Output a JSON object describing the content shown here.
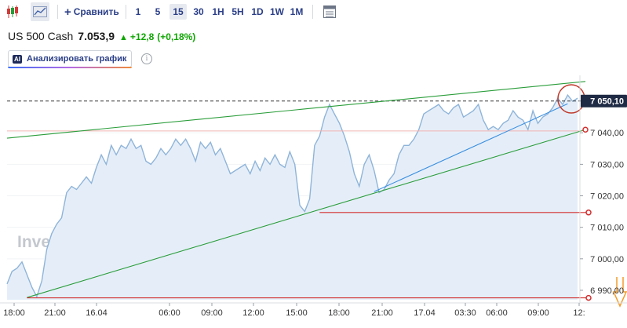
{
  "toolbar": {
    "compare_label": "Сравнить",
    "timeframes": [
      "1",
      "5",
      "15",
      "30",
      "1H",
      "5H",
      "1D",
      "1W",
      "1M"
    ],
    "selected_timeframe": "15"
  },
  "instrument": {
    "name": "US 500 Cash",
    "price": "7.053,9",
    "change": "+12,8",
    "change_pct": "(+0,18%)"
  },
  "analyze_button": {
    "badge": "AI",
    "label": "Анализировать график"
  },
  "chart_data": {
    "type": "area",
    "watermark": "Investing.com",
    "ylim": [
      6987,
      7057
    ],
    "y_ticks": [
      7040,
      7030,
      7020,
      7010,
      7000,
      6990
    ],
    "y_tick_labels": [
      "7 040,00",
      "7 030,00",
      "7 020,00",
      "7 010,00",
      "7 000,00",
      "6 990,00"
    ],
    "x_tick_labels": [
      "18:00",
      "21:00",
      "16.04",
      "06:00",
      "09:00",
      "12:00",
      "15:00",
      "18:00",
      "21:00",
      "17.04",
      "03:30",
      "06:00",
      "09:00",
      "12:"
    ],
    "last_price_label": "7 050,10",
    "last_price": 7050.1,
    "series": [
      {
        "values": [
          6992,
          6996,
          6997,
          6999,
          6995,
          6991,
          6988,
          6993,
          7003,
          7008,
          7011,
          7013,
          7021,
          7023,
          7022,
          7024,
          7026,
          7024,
          7029,
          7033,
          7030,
          7036,
          7033,
          7036,
          7035,
          7038,
          7035,
          7036,
          7031,
          7030,
          7032,
          7035,
          7033,
          7035,
          7038,
          7036,
          7038,
          7035,
          7031,
          7037,
          7035,
          7037,
          7033,
          7035,
          7031,
          7027,
          7028,
          7029,
          7030,
          7027,
          7031,
          7028,
          7032,
          7030,
          7033,
          7030,
          7029,
          7034,
          7030,
          7017,
          7015,
          7019,
          7036,
          7039,
          7045,
          7049,
          7046,
          7043,
          7039,
          7034,
          7027,
          7023,
          7030,
          7033,
          7028,
          7021,
          7022,
          7025,
          7027,
          7033,
          7036,
          7036,
          7038,
          7041,
          7046,
          7047,
          7048,
          7049,
          7047,
          7046,
          7048,
          7049,
          7045,
          7046,
          7047,
          7049,
          7044,
          7041,
          7042,
          7041,
          7043,
          7044,
          7047,
          7045,
          7044,
          7041,
          7047,
          7043,
          7045,
          7046,
          7048,
          7051,
          7049,
          7052,
          7050,
          7051
        ]
      }
    ],
    "trendlines": [
      {
        "color": "#2a9d3a",
        "from": {
          "x": 0,
          "y": 7038.3
        },
        "to": {
          "x": 115,
          "y": 7056.3
        }
      },
      {
        "color": "#2a9d3a",
        "from": {
          "x": 4,
          "y": 6987.7
        },
        "to": {
          "x": 115,
          "y": 7041.0
        }
      },
      {
        "color": "#3b8fe0",
        "from": {
          "x": 74,
          "y": 7021.3
        },
        "to": {
          "x": 113,
          "y": 7049.2
        }
      }
    ],
    "levels": [
      {
        "price": 7014.7,
        "from_x": 63,
        "color": "#d32f2f"
      },
      {
        "price": 6987.6,
        "from_x": 4,
        "color": "#d32f2f"
      }
    ],
    "horizontal_lines": [
      {
        "price": 7040.6,
        "color": "#f1b3b3"
      },
      {
        "price": 7050.1,
        "style": "dashed",
        "color": "#333333"
      }
    ],
    "colors": {
      "line": "#8fb4d9",
      "fill": "#e5eef8",
      "axis_text": "#333333",
      "last_price_box": "#1f2a44"
    }
  }
}
